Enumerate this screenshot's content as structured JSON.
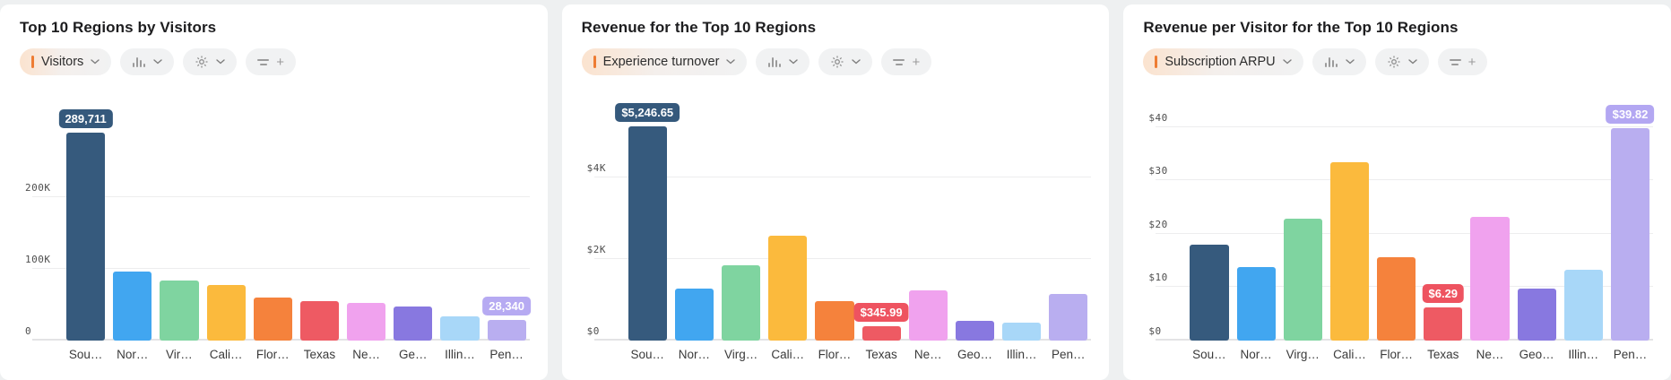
{
  "page": {
    "background_color": "#eef0f1",
    "card_color": "#ffffff"
  },
  "palette": [
    "#365a7d",
    "#41a6f0",
    "#7fd4a0",
    "#fbba3d",
    "#f5823c",
    "#ee5a63",
    "#f0a2ee",
    "#8878e0",
    "#a8d7f8",
    "#b9aef0"
  ],
  "icons": {
    "metric_marker": "orange-bar",
    "dropdown": "chevron-down",
    "chart_type": "column-chart",
    "settings": "gear",
    "filter": "filter-lines",
    "add": "plus"
  },
  "toolbar": {
    "plus_label": "+"
  },
  "charts": [
    {
      "title": "Top 10 Regions by Visitors",
      "metric_pill": {
        "label": "Visitors",
        "marker_color": "#ee7c33"
      },
      "chart_data": {
        "type": "bar",
        "categories": [
          "Sou…",
          "Nor…",
          "Vir…",
          "Cali…",
          "Flor…",
          "Texas",
          "Ne…",
          "Ge…",
          "Illin…",
          "Pen…"
        ],
        "values": [
          289711,
          96000,
          84000,
          77500,
          60000,
          55000,
          52500,
          47500,
          34000,
          28340
        ],
        "title": "Top 10 Regions by Visitors",
        "xlabel": "",
        "ylabel": "Visitors",
        "y_axis_max": 350000,
        "grid": true,
        "y_ticks": [
          {
            "label": "200K",
            "value": 200000
          },
          {
            "label": "100K",
            "value": 100000
          },
          {
            "label": "0",
            "value": 0
          }
        ],
        "badges": [
          {
            "index": 0,
            "label": "289,711",
            "color": "#35597c"
          },
          {
            "index": 9,
            "label": "28,340",
            "color": "#b6aaf2"
          }
        ]
      }
    },
    {
      "title": "Revenue for the Top 10 Regions",
      "metric_pill": {
        "label": "Experience turnover",
        "marker_color": "#ee7c33"
      },
      "chart_data": {
        "type": "bar",
        "categories": [
          "Sou…",
          "Nor…",
          "Virg…",
          "Cali…",
          "Flor…",
          "Texas",
          "Ne…",
          "Geo…",
          "Illin…",
          "Pen…"
        ],
        "values": [
          5246.65,
          1270,
          1840,
          2570,
          970,
          345.99,
          1230,
          480,
          440,
          1140
        ],
        "title": "Revenue for the Top 10 Regions",
        "xlabel": "",
        "ylabel": "Revenue",
        "y_axis_max": 6150,
        "grid": true,
        "y_ticks": [
          {
            "label": "$4K",
            "value": 4000
          },
          {
            "label": "$2K",
            "value": 2000
          },
          {
            "label": "$0",
            "value": 0
          }
        ],
        "badges": [
          {
            "index": 0,
            "label": "$5,246.65",
            "color": "#35597c"
          },
          {
            "index": 5,
            "label": "$345.99",
            "color": "#ee5360"
          }
        ]
      }
    },
    {
      "title": "Revenue per Visitor for the Top 10 Regions",
      "metric_pill": {
        "label": "Subscription ARPU",
        "marker_color": "#ee7c33"
      },
      "chart_data": {
        "type": "bar",
        "categories": [
          "Sou…",
          "Nor…",
          "Virg…",
          "Cali…",
          "Flor…",
          "Texas",
          "Ne…",
          "Geo…",
          "Illin…",
          "Pen…"
        ],
        "values": [
          17.9,
          13.7,
          22.8,
          33.4,
          15.6,
          6.29,
          23.2,
          9.7,
          13.3,
          39.82
        ],
        "title": "Revenue per Visitor for the Top 10 Regions",
        "xlabel": "",
        "ylabel": "Revenue per visitor",
        "y_axis_max": 47,
        "grid": true,
        "y_ticks": [
          {
            "label": "$40",
            "value": 40
          },
          {
            "label": "$30",
            "value": 30
          },
          {
            "label": "$20",
            "value": 20
          },
          {
            "label": "$10",
            "value": 10
          },
          {
            "label": "$0",
            "value": 0
          }
        ],
        "badges": [
          {
            "index": 5,
            "label": "$6.29",
            "color": "#ee5360"
          },
          {
            "index": 9,
            "label": "$39.82",
            "color": "#b3a7f2"
          }
        ]
      }
    }
  ]
}
